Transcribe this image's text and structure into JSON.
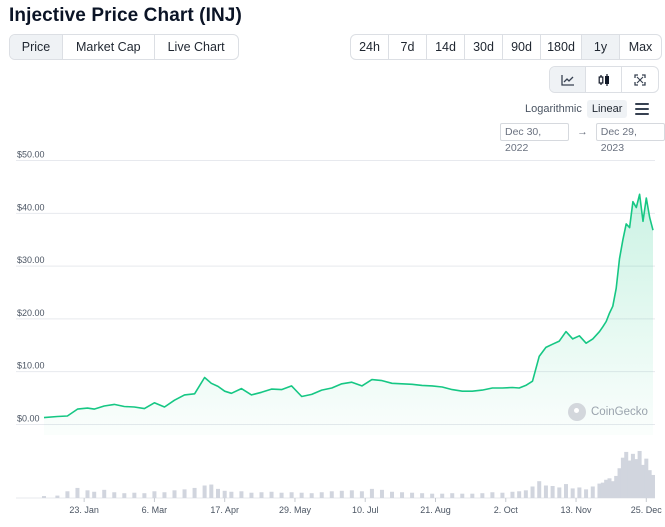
{
  "header": {
    "title": "Injective Price Chart (INJ)"
  },
  "type_tabs": [
    {
      "label": "Price",
      "active": true
    },
    {
      "label": "Market Cap",
      "active": false
    },
    {
      "label": "Live Chart",
      "active": false
    }
  ],
  "range_tabs": [
    {
      "label": "24h",
      "active": false
    },
    {
      "label": "7d",
      "active": false
    },
    {
      "label": "14d",
      "active": false
    },
    {
      "label": "30d",
      "active": false
    },
    {
      "label": "90d",
      "active": false
    },
    {
      "label": "180d",
      "active": false
    },
    {
      "label": "1y",
      "active": true
    },
    {
      "label": "Max",
      "active": false
    }
  ],
  "chart_tools": [
    {
      "icon": "line-chart-icon",
      "active": true
    },
    {
      "icon": "candlestick-icon",
      "active": false
    },
    {
      "icon": "fullscreen-icon",
      "active": false
    }
  ],
  "scale": {
    "logarithmic_label": "Logarithmic",
    "linear_label": "Linear",
    "active": "Linear"
  },
  "date_range": {
    "from": "Dec 30, 2022",
    "separator": "→",
    "to": "Dec 29, 2023"
  },
  "watermark": {
    "label": "CoinGecko"
  },
  "colors": {
    "line": "#16c784",
    "volume": "#d1d5de",
    "grid": "#e7e9ee"
  },
  "chart_data": {
    "type": "line",
    "title": "Injective Price Chart (INJ)",
    "xlabel": "",
    "ylabel": "",
    "y_tick_labels": [
      "$0.00",
      "$10.00",
      "$20.00",
      "$30.00",
      "$40.00",
      "$50.00"
    ],
    "y_ticks": [
      0,
      10,
      20,
      30,
      40,
      50
    ],
    "ylim": [
      -2,
      52
    ],
    "x_tick_labels": [
      "23. Jan",
      "6. Mar",
      "17. Apr",
      "29. May",
      "10. Jul",
      "21. Aug",
      "2. Oct",
      "13. Nov",
      "25. Dec"
    ],
    "x_ticks": [
      24,
      66,
      108,
      150,
      192,
      234,
      276,
      318,
      360
    ],
    "xlim": [
      0,
      364
    ],
    "series": [
      {
        "name": "Price",
        "x": [
          0,
          8,
          14,
          20,
          26,
          30,
          36,
          42,
          48,
          54,
          60,
          66,
          72,
          78,
          84,
          90,
          96,
          100,
          104,
          108,
          112,
          118,
          124,
          130,
          136,
          142,
          148,
          154,
          160,
          166,
          172,
          178,
          184,
          190,
          196,
          202,
          208,
          214,
          220,
          226,
          232,
          238,
          244,
          250,
          256,
          262,
          268,
          274,
          280,
          284,
          288,
          292,
          296,
          300,
          304,
          308,
          312,
          316,
          320,
          324,
          328,
          332,
          334,
          336,
          338,
          340,
          342,
          344,
          346,
          348,
          350,
          352,
          354,
          356,
          358,
          360,
          362,
          364
        ],
        "values": [
          1.3,
          1.5,
          1.6,
          2.9,
          3.1,
          2.9,
          3.5,
          3.8,
          3.4,
          3.3,
          3.0,
          4.1,
          3.3,
          4.6,
          5.6,
          5.8,
          8.9,
          7.8,
          7.2,
          6.3,
          5.9,
          6.8,
          5.6,
          6.1,
          6.7,
          6.6,
          7.3,
          5.3,
          5.7,
          6.5,
          6.9,
          7.7,
          8.0,
          7.3,
          8.5,
          8.3,
          7.8,
          7.7,
          7.6,
          7.4,
          7.3,
          7.1,
          6.6,
          6.3,
          6.3,
          6.5,
          6.9,
          6.9,
          7.0,
          6.9,
          7.4,
          8.2,
          12.9,
          14.6,
          15.2,
          15.8,
          17.6,
          16.2,
          16.8,
          15.4,
          16.2,
          17.6,
          18.5,
          19.5,
          21.1,
          22.4,
          25.8,
          31.4,
          35.0,
          38.0,
          37.3,
          42.2,
          41.1,
          43.6,
          38.5,
          42.9,
          39.2,
          36.8
        ]
      }
    ],
    "volume": {
      "x": [
        0,
        8,
        14,
        20,
        26,
        30,
        36,
        42,
        48,
        54,
        60,
        66,
        72,
        78,
        84,
        90,
        96,
        100,
        104,
        108,
        112,
        118,
        124,
        130,
        136,
        142,
        148,
        154,
        160,
        166,
        172,
        178,
        184,
        190,
        196,
        202,
        208,
        214,
        220,
        226,
        232,
        238,
        244,
        250,
        256,
        262,
        268,
        274,
        280,
        284,
        288,
        292,
        296,
        300,
        304,
        308,
        312,
        316,
        320,
        324,
        328,
        332,
        334,
        336,
        338,
        340,
        342,
        344,
        346,
        348,
        350,
        352,
        354,
        356,
        358,
        360,
        362,
        364
      ],
      "values": [
        0.4,
        0.5,
        1.4,
        2.1,
        1.6,
        1.3,
        1.7,
        1.2,
        1.0,
        1.1,
        1.0,
        1.4,
        1.2,
        1.6,
        1.8,
        2.1,
        2.6,
        2.8,
        1.9,
        1.5,
        1.3,
        1.4,
        1.1,
        1.2,
        1.3,
        1.1,
        1.2,
        1.1,
        1.0,
        1.2,
        1.4,
        1.5,
        1.6,
        1.4,
        1.9,
        1.7,
        1.3,
        1.2,
        1.1,
        1.0,
        0.9,
        0.9,
        1.0,
        0.9,
        0.9,
        1.0,
        1.2,
        1.1,
        1.3,
        1.4,
        1.6,
        2.4,
        3.5,
        2.6,
        2.5,
        2.2,
        2.9,
        2.0,
        2.2,
        1.8,
        2.4,
        3.0,
        3.2,
        3.8,
        4.1,
        3.5,
        4.6,
        6.2,
        8.4,
        9.6,
        7.8,
        9.2,
        8.1,
        9.8,
        6.9,
        8.2,
        5.8,
        4.8
      ],
      "ylim": [
        0,
        10
      ]
    }
  }
}
